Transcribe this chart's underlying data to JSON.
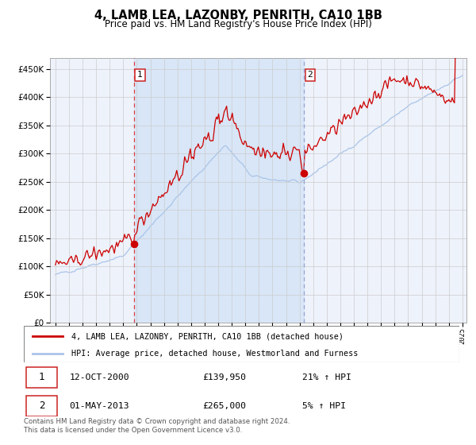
{
  "title": "4, LAMB LEA, LAZONBY, PENRITH, CA10 1BB",
  "subtitle": "Price paid vs. HM Land Registry's House Price Index (HPI)",
  "ylim": [
    0,
    470000
  ],
  "yticks": [
    0,
    50000,
    100000,
    150000,
    200000,
    250000,
    300000,
    350000,
    400000,
    450000
  ],
  "x_start_year": 1995,
  "x_end_year": 2025,
  "sale1_date_decimal": 2000.79,
  "sale1_value": 139950,
  "sale2_date_decimal": 2013.33,
  "sale2_value": 265000,
  "hpi_color": "#aac4e8",
  "price_color": "#cc0000",
  "bg_color": "#ffffff",
  "plot_bg_color": "#eef2fb",
  "grid_color": "#cccccc",
  "shaded_region_color": "#d8e6f7",
  "legend_label_price": "4, LAMB LEA, LAZONBY, PENRITH, CA10 1BB (detached house)",
  "legend_label_hpi": "HPI: Average price, detached house, Westmorland and Furness",
  "annotation1_date": "12-OCT-2000",
  "annotation1_price": "£139,950",
  "annotation1_hpi": "21% ↑ HPI",
  "annotation2_date": "01-MAY-2013",
  "annotation2_price": "£265,000",
  "annotation2_hpi": "5% ↑ HPI",
  "footnote": "Contains HM Land Registry data © Crown copyright and database right 2024.\nThis data is licensed under the Open Government Licence v3.0."
}
